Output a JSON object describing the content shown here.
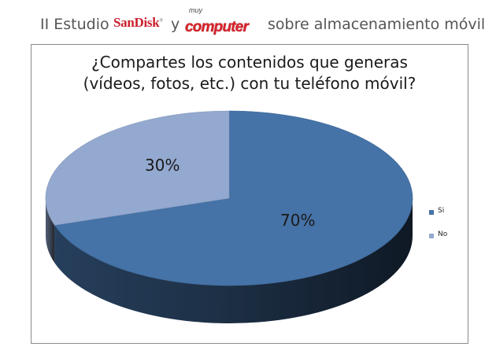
{
  "header": {
    "prefix": "II Estudio",
    "sandisk_logo": "SanDisk",
    "connector": "y",
    "muycomputer_logo_small": "muy",
    "muycomputer_logo": "computer",
    "suffix": "sobre almacenamiento móvil"
  },
  "chart_data": {
    "type": "pie",
    "title_lines": [
      "¿Compartes los contenidos que generas",
      "(vídeos, fotos, etc.) con tu teléfono móvil?"
    ],
    "categories": [
      "Si",
      "No"
    ],
    "values": [
      70,
      30
    ],
    "data_labels": [
      "70%",
      "30%"
    ],
    "colors": [
      "#4572a7",
      "#93a9cf"
    ],
    "legend_position": "right",
    "three_d": true
  }
}
